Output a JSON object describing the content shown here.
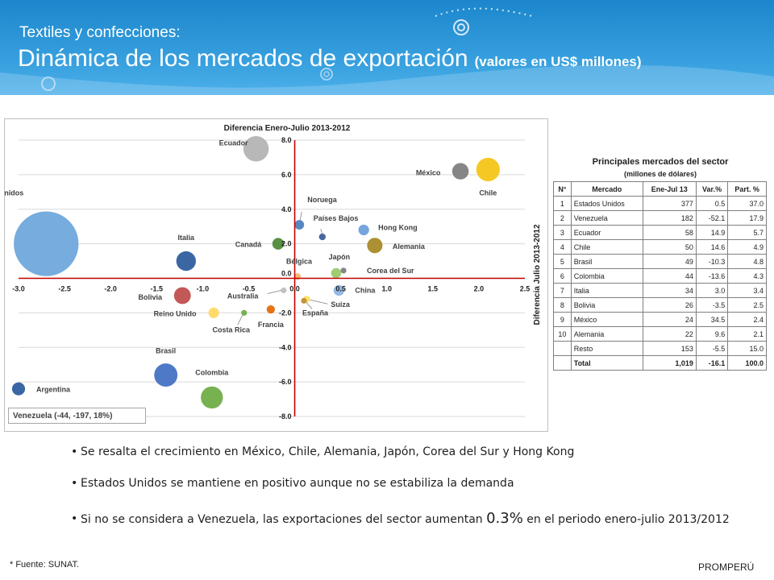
{
  "header": {
    "subtitle": "Textiles y confecciones:",
    "title": "Dinámica de los mercados de exportación",
    "unit": "(valores en US$ millones)"
  },
  "colors": {
    "header_blue": "#2a96d8",
    "axis_red": "#c00000"
  },
  "chart_data": {
    "type": "scatter",
    "title": "Diferencia Enero-Julio 2013-2012",
    "ylabel": "Diferencia Julio 2013-2012",
    "xlim": [
      -3.0,
      2.5
    ],
    "ylim": [
      -8.0,
      8.0
    ],
    "x_ticks": [
      "-3.0",
      "-2.5",
      "-2.0",
      "-1.5",
      "-1.0",
      "-0.5",
      "0.0",
      "0.5",
      "1.0",
      "1.5",
      "2.0",
      "2.5"
    ],
    "y_ticks": [
      "8.0",
      "6.0",
      "4.0",
      "2.0",
      "0.0",
      "-2.0",
      "-4.0",
      "-6.0",
      "-8.0"
    ],
    "note": "Venezuela (-44, -197, 18%)",
    "points": [
      {
        "label": "Estados Unidos",
        "x": -2.7,
        "y": 2.0,
        "size": 37.0,
        "color": "#6fa8dc"
      },
      {
        "label": "Ecuador",
        "x": -0.42,
        "y": 7.5,
        "size": 5.7,
        "color": "#b4b4b4"
      },
      {
        "label": "México",
        "x": 1.8,
        "y": 6.2,
        "size": 2.4,
        "color": "#7f7f7f"
      },
      {
        "label": "Chile",
        "x": 2.1,
        "y": 6.3,
        "size": 4.9,
        "color": "#f5c518"
      },
      {
        "label": "Noruega",
        "x": 0.05,
        "y": 3.1,
        "size": 0.8,
        "color": "#4f81bd"
      },
      {
        "label": "Países Bajos",
        "x": 0.3,
        "y": 2.4,
        "size": 0.4,
        "color": "#3f5f9f"
      },
      {
        "label": "Hong Kong",
        "x": 0.75,
        "y": 2.8,
        "size": 1.0,
        "color": "#6fa0dc"
      },
      {
        "label": "Alemania",
        "x": 0.87,
        "y": 1.9,
        "size": 2.1,
        "color": "#a88a28"
      },
      {
        "label": "Canadá",
        "x": -0.18,
        "y": 2.0,
        "size": 1.2,
        "color": "#4f8a3a"
      },
      {
        "label": "Italia",
        "x": -1.18,
        "y": 1.0,
        "size": 3.4,
        "color": "#2f5f9f"
      },
      {
        "label": "Bélgica",
        "x": 0.03,
        "y": 0.1,
        "size": 0.4,
        "color": "#f7b77a"
      },
      {
        "label": "Japón",
        "x": 0.45,
        "y": 0.3,
        "size": 0.9,
        "color": "#9bc96a"
      },
      {
        "label": "Corea del Sur",
        "x": 0.53,
        "y": 0.45,
        "size": 0.3,
        "color": "#808080"
      },
      {
        "label": "China",
        "x": 0.48,
        "y": -0.7,
        "size": 1.0,
        "color": "#8fb4e3"
      },
      {
        "label": "Bolivia",
        "x": -1.22,
        "y": -1.0,
        "size": 2.5,
        "color": "#c0504d"
      },
      {
        "label": "Reino Unido",
        "x": -0.88,
        "y": -2.0,
        "size": 1.0,
        "color": "#ffd966"
      },
      {
        "label": "Australia",
        "x": -0.12,
        "y": -0.7,
        "size": 0.3,
        "color": "#bfbfbf"
      },
      {
        "label": "Costa Rica",
        "x": -0.55,
        "y": -2.0,
        "size": 0.3,
        "color": "#70ad47"
      },
      {
        "label": "Francia",
        "x": -0.26,
        "y": -1.8,
        "size": 0.6,
        "color": "#e46c0a"
      },
      {
        "label": "España",
        "x": 0.1,
        "y": -1.3,
        "size": 0.3,
        "color": "#c09030"
      },
      {
        "label": "Suiza",
        "x": 0.13,
        "y": -1.2,
        "size": 0.4,
        "color": "#ffe066"
      },
      {
        "label": "Brasil",
        "x": -1.4,
        "y": -5.6,
        "size": 4.8,
        "color": "#4472c4"
      },
      {
        "label": "Colombia",
        "x": -0.9,
        "y": -6.9,
        "size": 4.3,
        "color": "#70ad47"
      },
      {
        "label": "Argentina",
        "x": -3.0,
        "y": -6.4,
        "size": 1.5,
        "color": "#2f5f9f"
      }
    ]
  },
  "table": {
    "title": "Principales mercados del sector",
    "subtitle": "(millones de dólares)",
    "headers": [
      "N°",
      "Mercado",
      "Ene-Jul 13",
      "Var.%",
      "Part. %"
    ],
    "rows": [
      [
        "1",
        "Estados Unidos",
        "377",
        "0.5",
        "37.0"
      ],
      [
        "2",
        "Venezuela",
        "182",
        "-52.1",
        "17.9"
      ],
      [
        "3",
        "Ecuador",
        "58",
        "14.9",
        "5.7"
      ],
      [
        "4",
        "Chile",
        "50",
        "14.6",
        "4.9"
      ],
      [
        "5",
        "Brasil",
        "49",
        "-10.3",
        "4.8"
      ],
      [
        "6",
        "Colombia",
        "44",
        "-13.6",
        "4.3"
      ],
      [
        "7",
        "Italia",
        "34",
        "3.0",
        "3.4"
      ],
      [
        "8",
        "Bolivia",
        "26",
        "-3.5",
        "2.5"
      ],
      [
        "9",
        "México",
        "24",
        "34.5",
        "2.4"
      ],
      [
        "10",
        "Alemania",
        "22",
        "9.6",
        "2.1"
      ]
    ],
    "resto": [
      "",
      "Resto",
      "153",
      "-5.5",
      "15.0"
    ],
    "total": [
      "",
      "Total",
      "1,019",
      "-16.1",
      "100.0"
    ]
  },
  "bullets": {
    "b1": "Se resalta el crecimiento en México, Chile, Alemania, Japón, Corea del Sur y Hong Kong",
    "b2": "Estados Unidos se mantiene en positivo aunque no se estabiliza la demanda",
    "b3_pre": "Si no se considera a Venezuela, las exportaciones del sector aumentan ",
    "b3_value": "0.3%",
    "b3_post": " en el periodo enero-julio 2013/2012"
  },
  "footer": {
    "source": "* Fuente: SUNAT.",
    "brand": "PROMPERÚ"
  }
}
